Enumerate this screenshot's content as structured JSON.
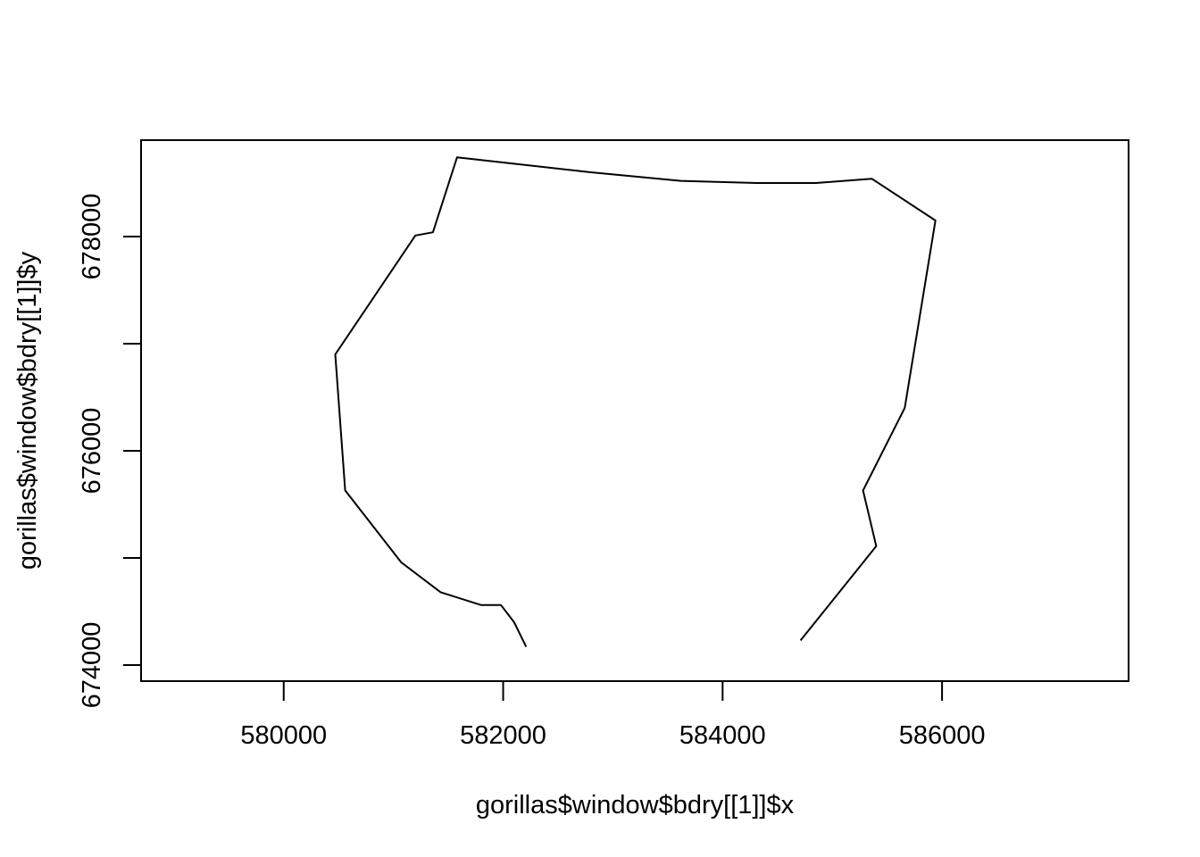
{
  "chart_data": {
    "type": "line",
    "title": "",
    "xlabel": "gorillas$window$bdry[[1]]$x",
    "ylabel": "gorillas$window$bdry[[1]]$y",
    "xlim": [
      578700,
      587700
    ],
    "ylim": [
      673850,
      678900
    ],
    "x_ticks": [
      580000,
      582000,
      584000,
      586000
    ],
    "x_tick_labels": [
      "580000",
      "582000",
      "584000",
      "586000"
    ],
    "y_ticks": [
      674000,
      675000,
      676000,
      677000,
      678000
    ],
    "y_tick_labels": [
      "674000",
      "676000",
      "678000"
    ],
    "y_labeled_ticks": [
      674000,
      676000,
      678000
    ],
    "grid": false,
    "series": [
      {
        "name": "bdry[[1]]",
        "color": "#000000",
        "x": [
          582210,
          582100,
          581980,
          581800,
          581430,
          581070,
          580560,
          580470,
          581200,
          581360,
          581580,
          582800,
          583620,
          584310,
          584850,
          585360,
          585940,
          585660,
          585280,
          585400,
          584710
        ],
        "y": [
          674170,
          674400,
          674560,
          674560,
          674680,
          674960,
          675630,
          676900,
          678010,
          678040,
          678740,
          678600,
          678520,
          678500,
          678500,
          678540,
          678150,
          676400,
          675630,
          675110,
          674230
        ]
      }
    ]
  }
}
